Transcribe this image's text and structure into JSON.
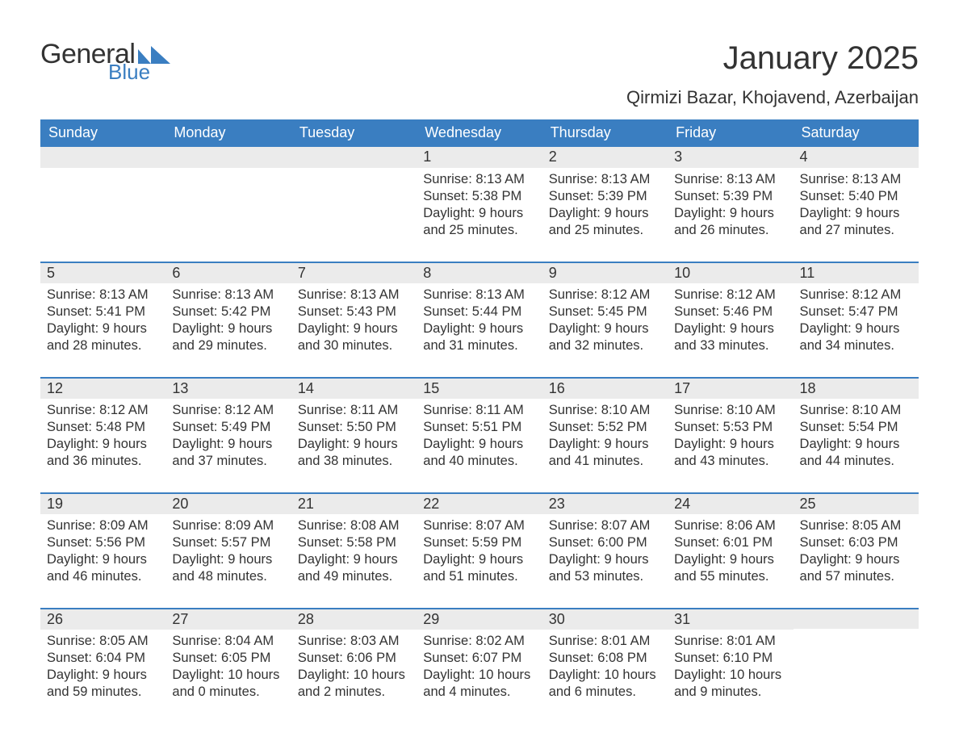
{
  "logo": {
    "word1": "General",
    "word2": "Blue",
    "tri_color": "#3a7ec1"
  },
  "title": "January 2025",
  "location": "Qirmizi Bazar, Khojavend, Azerbaijan",
  "colors": {
    "header_bg": "#3a7ec1",
    "header_text": "#ffffff",
    "daynum_bg": "#ebebeb",
    "border_top": "#3a7ec1",
    "text": "#333333",
    "page_bg": "#ffffff"
  },
  "typography": {
    "title_fontsize": 40,
    "location_fontsize": 22,
    "dow_fontsize": 18,
    "daynum_fontsize": 18,
    "body_fontsize": 16.5
  },
  "days_of_week": [
    "Sunday",
    "Monday",
    "Tuesday",
    "Wednesday",
    "Thursday",
    "Friday",
    "Saturday"
  ],
  "weeks": [
    [
      {
        "n": "",
        "sunrise": "",
        "sunset": "",
        "daylight": ""
      },
      {
        "n": "",
        "sunrise": "",
        "sunset": "",
        "daylight": ""
      },
      {
        "n": "",
        "sunrise": "",
        "sunset": "",
        "daylight": ""
      },
      {
        "n": "1",
        "sunrise": "Sunrise: 8:13 AM",
        "sunset": "Sunset: 5:38 PM",
        "daylight": "Daylight: 9 hours and 25 minutes."
      },
      {
        "n": "2",
        "sunrise": "Sunrise: 8:13 AM",
        "sunset": "Sunset: 5:39 PM",
        "daylight": "Daylight: 9 hours and 25 minutes."
      },
      {
        "n": "3",
        "sunrise": "Sunrise: 8:13 AM",
        "sunset": "Sunset: 5:39 PM",
        "daylight": "Daylight: 9 hours and 26 minutes."
      },
      {
        "n": "4",
        "sunrise": "Sunrise: 8:13 AM",
        "sunset": "Sunset: 5:40 PM",
        "daylight": "Daylight: 9 hours and 27 minutes."
      }
    ],
    [
      {
        "n": "5",
        "sunrise": "Sunrise: 8:13 AM",
        "sunset": "Sunset: 5:41 PM",
        "daylight": "Daylight: 9 hours and 28 minutes."
      },
      {
        "n": "6",
        "sunrise": "Sunrise: 8:13 AM",
        "sunset": "Sunset: 5:42 PM",
        "daylight": "Daylight: 9 hours and 29 minutes."
      },
      {
        "n": "7",
        "sunrise": "Sunrise: 8:13 AM",
        "sunset": "Sunset: 5:43 PM",
        "daylight": "Daylight: 9 hours and 30 minutes."
      },
      {
        "n": "8",
        "sunrise": "Sunrise: 8:13 AM",
        "sunset": "Sunset: 5:44 PM",
        "daylight": "Daylight: 9 hours and 31 minutes."
      },
      {
        "n": "9",
        "sunrise": "Sunrise: 8:12 AM",
        "sunset": "Sunset: 5:45 PM",
        "daylight": "Daylight: 9 hours and 32 minutes."
      },
      {
        "n": "10",
        "sunrise": "Sunrise: 8:12 AM",
        "sunset": "Sunset: 5:46 PM",
        "daylight": "Daylight: 9 hours and 33 minutes."
      },
      {
        "n": "11",
        "sunrise": "Sunrise: 8:12 AM",
        "sunset": "Sunset: 5:47 PM",
        "daylight": "Daylight: 9 hours and 34 minutes."
      }
    ],
    [
      {
        "n": "12",
        "sunrise": "Sunrise: 8:12 AM",
        "sunset": "Sunset: 5:48 PM",
        "daylight": "Daylight: 9 hours and 36 minutes."
      },
      {
        "n": "13",
        "sunrise": "Sunrise: 8:12 AM",
        "sunset": "Sunset: 5:49 PM",
        "daylight": "Daylight: 9 hours and 37 minutes."
      },
      {
        "n": "14",
        "sunrise": "Sunrise: 8:11 AM",
        "sunset": "Sunset: 5:50 PM",
        "daylight": "Daylight: 9 hours and 38 minutes."
      },
      {
        "n": "15",
        "sunrise": "Sunrise: 8:11 AM",
        "sunset": "Sunset: 5:51 PM",
        "daylight": "Daylight: 9 hours and 40 minutes."
      },
      {
        "n": "16",
        "sunrise": "Sunrise: 8:10 AM",
        "sunset": "Sunset: 5:52 PM",
        "daylight": "Daylight: 9 hours and 41 minutes."
      },
      {
        "n": "17",
        "sunrise": "Sunrise: 8:10 AM",
        "sunset": "Sunset: 5:53 PM",
        "daylight": "Daylight: 9 hours and 43 minutes."
      },
      {
        "n": "18",
        "sunrise": "Sunrise: 8:10 AM",
        "sunset": "Sunset: 5:54 PM",
        "daylight": "Daylight: 9 hours and 44 minutes."
      }
    ],
    [
      {
        "n": "19",
        "sunrise": "Sunrise: 8:09 AM",
        "sunset": "Sunset: 5:56 PM",
        "daylight": "Daylight: 9 hours and 46 minutes."
      },
      {
        "n": "20",
        "sunrise": "Sunrise: 8:09 AM",
        "sunset": "Sunset: 5:57 PM",
        "daylight": "Daylight: 9 hours and 48 minutes."
      },
      {
        "n": "21",
        "sunrise": "Sunrise: 8:08 AM",
        "sunset": "Sunset: 5:58 PM",
        "daylight": "Daylight: 9 hours and 49 minutes."
      },
      {
        "n": "22",
        "sunrise": "Sunrise: 8:07 AM",
        "sunset": "Sunset: 5:59 PM",
        "daylight": "Daylight: 9 hours and 51 minutes."
      },
      {
        "n": "23",
        "sunrise": "Sunrise: 8:07 AM",
        "sunset": "Sunset: 6:00 PM",
        "daylight": "Daylight: 9 hours and 53 minutes."
      },
      {
        "n": "24",
        "sunrise": "Sunrise: 8:06 AM",
        "sunset": "Sunset: 6:01 PM",
        "daylight": "Daylight: 9 hours and 55 minutes."
      },
      {
        "n": "25",
        "sunrise": "Sunrise: 8:05 AM",
        "sunset": "Sunset: 6:03 PM",
        "daylight": "Daylight: 9 hours and 57 minutes."
      }
    ],
    [
      {
        "n": "26",
        "sunrise": "Sunrise: 8:05 AM",
        "sunset": "Sunset: 6:04 PM",
        "daylight": "Daylight: 9 hours and 59 minutes."
      },
      {
        "n": "27",
        "sunrise": "Sunrise: 8:04 AM",
        "sunset": "Sunset: 6:05 PM",
        "daylight": "Daylight: 10 hours and 0 minutes."
      },
      {
        "n": "28",
        "sunrise": "Sunrise: 8:03 AM",
        "sunset": "Sunset: 6:06 PM",
        "daylight": "Daylight: 10 hours and 2 minutes."
      },
      {
        "n": "29",
        "sunrise": "Sunrise: 8:02 AM",
        "sunset": "Sunset: 6:07 PM",
        "daylight": "Daylight: 10 hours and 4 minutes."
      },
      {
        "n": "30",
        "sunrise": "Sunrise: 8:01 AM",
        "sunset": "Sunset: 6:08 PM",
        "daylight": "Daylight: 10 hours and 6 minutes."
      },
      {
        "n": "31",
        "sunrise": "Sunrise: 8:01 AM",
        "sunset": "Sunset: 6:10 PM",
        "daylight": "Daylight: 10 hours and 9 minutes."
      },
      {
        "n": "",
        "sunrise": "",
        "sunset": "",
        "daylight": ""
      }
    ]
  ]
}
